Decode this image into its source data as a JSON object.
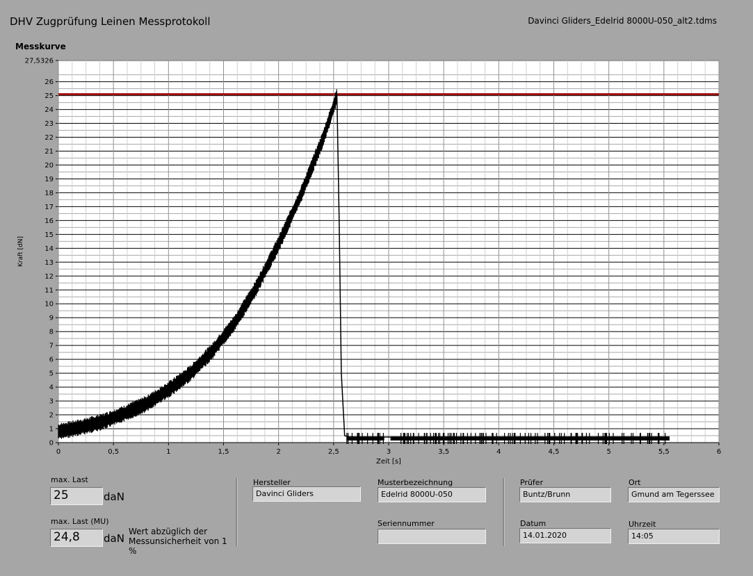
{
  "header": {
    "title": "DHV Zugprüfung Leinen Messprotokoll",
    "filename": "Davinci Gliders_Edelrid 8000U-050_alt2.tdms"
  },
  "section_label": "Messkurve",
  "chart_data": {
    "type": "line",
    "xlabel": "Zeit [s]",
    "ylabel": "Kraft [dN]",
    "xlim": [
      0,
      6
    ],
    "ylim": [
      0,
      27.5326
    ],
    "ymax_label": "27,5326",
    "xticks": [
      "0",
      "0,5",
      "1",
      "1,5",
      "2",
      "2,5",
      "3",
      "3,5",
      "4",
      "4,5",
      "5",
      "5,5",
      "6"
    ],
    "yticks": [
      "0",
      "1",
      "2",
      "3",
      "4",
      "5",
      "6",
      "7",
      "8",
      "9",
      "10",
      "11",
      "12",
      "13",
      "14",
      "15",
      "16",
      "17",
      "18",
      "19",
      "20",
      "21",
      "22",
      "23",
      "24",
      "25",
      "26"
    ],
    "grid": true,
    "reference_line": {
      "y": 25.1,
      "color": "#a01010"
    },
    "series": [
      {
        "color": "#000000",
        "points": [
          [
            0,
            0.8
          ],
          [
            0.2,
            1.1
          ],
          [
            0.4,
            1.5
          ],
          [
            0.6,
            2.1
          ],
          [
            0.8,
            2.8
          ],
          [
            1.0,
            3.8
          ],
          [
            1.2,
            5.0
          ],
          [
            1.4,
            6.6
          ],
          [
            1.6,
            8.6
          ],
          [
            1.8,
            11.2
          ],
          [
            2.0,
            14.3
          ],
          [
            2.2,
            17.8
          ],
          [
            2.4,
            21.8
          ],
          [
            2.5,
            24.2
          ],
          [
            2.53,
            25.0
          ],
          [
            2.55,
            16.0
          ],
          [
            2.57,
            5.0
          ],
          [
            2.6,
            0.5
          ],
          [
            2.65,
            0.4
          ],
          [
            3.0,
            0.4
          ],
          [
            3.5,
            0.3
          ],
          [
            4.0,
            0.3
          ],
          [
            4.5,
            0.3
          ],
          [
            5.0,
            0.3
          ],
          [
            5.55,
            0.3
          ]
        ]
      }
    ]
  },
  "fields": {
    "max_last": {
      "label": "max. Last",
      "value": "25",
      "unit": "daN"
    },
    "max_last_mu": {
      "label": "max. Last (MU)",
      "value": "24,8",
      "unit": "daN",
      "note": "Wert abzüglich der Messunsicherheit von 1 %"
    },
    "hersteller": {
      "label": "Hersteller",
      "value": "Davinci Gliders"
    },
    "musterbezeichnung": {
      "label": "Musterbezeichnung",
      "value": "Edelrid 8000U-050"
    },
    "seriennummer": {
      "label": "Seriennummer",
      "value": ""
    },
    "pruefer": {
      "label": "Prüfer",
      "value": "Buntz/Brunn"
    },
    "ort": {
      "label": "Ort",
      "value": "Gmund am Tegerssee"
    },
    "datum": {
      "label": "Datum",
      "value": "14.01.2020"
    },
    "uhrzeit": {
      "label": "Uhrzeit",
      "value": "14:05"
    }
  }
}
